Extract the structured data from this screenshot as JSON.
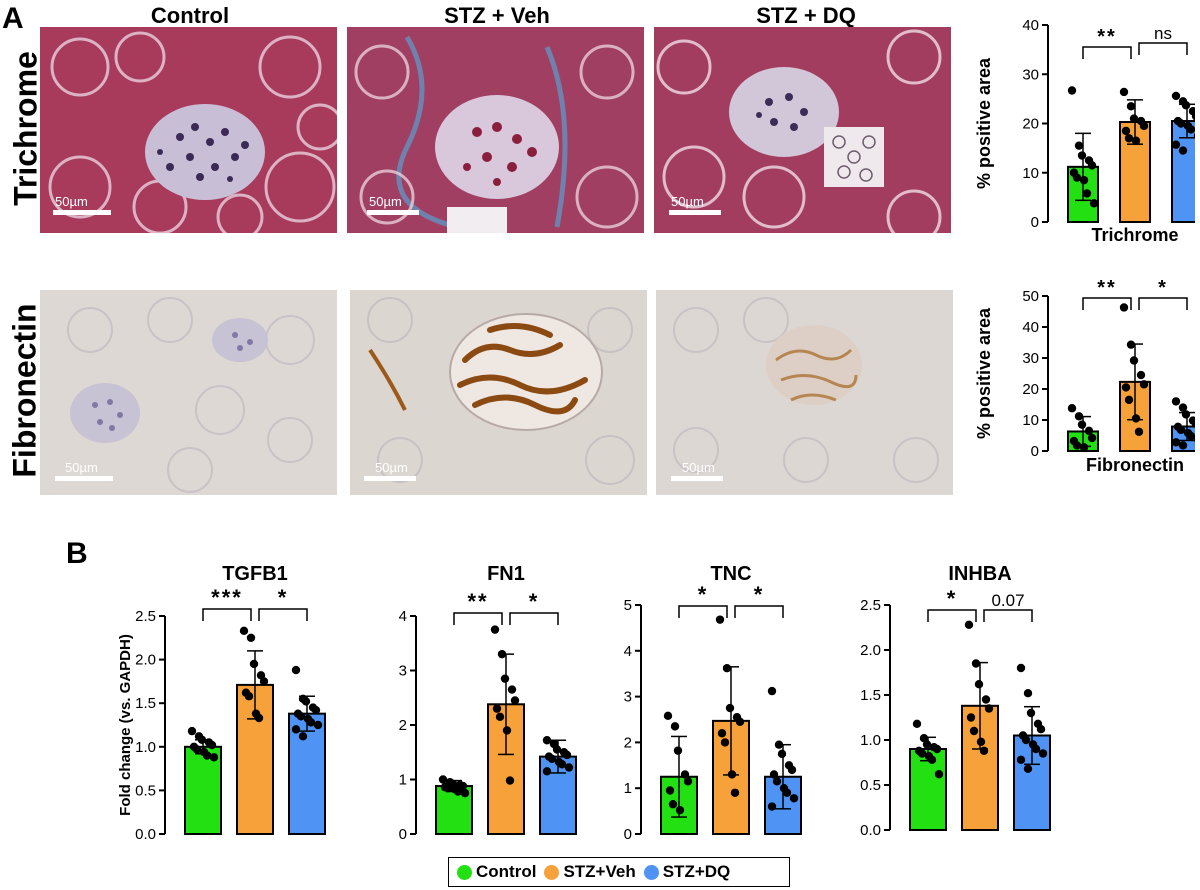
{
  "panel_labels": {
    "a": "A",
    "b": "B"
  },
  "columns": [
    "Control",
    "STZ + Veh",
    "STZ + DQ"
  ],
  "rows": [
    "Trichrome",
    "Fibronectin"
  ],
  "scale_label": "50µm",
  "colors": {
    "control": "#22e012",
    "stz_veh": "#f7a13b",
    "stz_dq": "#4f94f5",
    "trichrome_bg": "#a83a5c",
    "fibronectin_bg": "#ddd8d4"
  },
  "legend": [
    {
      "label": "Control",
      "color": "#22e012"
    },
    {
      "label": "STZ+Veh",
      "color": "#f7a13b"
    },
    {
      "label": "STZ+DQ",
      "color": "#4f94f5"
    }
  ],
  "chart_data": [
    {
      "id": "trichrome",
      "type": "bar",
      "title": "",
      "xlabel": "Trichrome",
      "ylabel": "% positive area",
      "ylim": [
        0,
        40
      ],
      "yticks": [
        0,
        10,
        20,
        30,
        40
      ],
      "categories": [
        "Control",
        "STZ+Veh",
        "STZ+DQ"
      ],
      "values": [
        11.2,
        20.3,
        20.5
      ],
      "errors": [
        6.8,
        4.5,
        3.4
      ],
      "points": [
        [
          26.7,
          15.5,
          13.5,
          12.5,
          11.5,
          10,
          9,
          8.5,
          5.8,
          3.8
        ],
        [
          26.4,
          23.5,
          21,
          20.5,
          19.5,
          18.5,
          17,
          16.5
        ],
        [
          25.6,
          24.5,
          23.7,
          22.5,
          21.5,
          20.5,
          20,
          19.5,
          18.8,
          17.5,
          15.7,
          14.5
        ]
      ],
      "comparisons": [
        {
          "from": 0,
          "to": 1,
          "label": "**"
        },
        {
          "from": 1,
          "to": 2,
          "label": "ns"
        }
      ]
    },
    {
      "id": "fibronectin",
      "type": "bar",
      "title": "",
      "xlabel": "Fibronectin",
      "ylabel": "% positive area",
      "ylim": [
        0,
        50
      ],
      "yticks": [
        0,
        10,
        20,
        30,
        40,
        50
      ],
      "categories": [
        "Control",
        "STZ+Veh",
        "STZ+DQ"
      ],
      "values": [
        6.3,
        22.3,
        7.9
      ],
      "errors": [
        4.8,
        12.2,
        4.5
      ],
      "points": [
        [
          13.8,
          11.2,
          8.5,
          6.5,
          4.2,
          3.2,
          1.8,
          1.2
        ],
        [
          46.3,
          34.3,
          29.2,
          24.5,
          21.5,
          20.5,
          16.5,
          10.5,
          6.2
        ],
        [
          16,
          14,
          11.8,
          9.8,
          8.8,
          7.8,
          6.8,
          5.8,
          4.8,
          3.8,
          2.8,
          1.8
        ]
      ],
      "comparisons": [
        {
          "from": 0,
          "to": 1,
          "label": "**"
        },
        {
          "from": 1,
          "to": 2,
          "label": "*"
        }
      ]
    },
    {
      "id": "tgfb1",
      "type": "bar",
      "title": "TGFB1",
      "xlabel": "",
      "ylabel": "Fold change (vs. GAPDH)",
      "ylim": [
        0,
        2.5
      ],
      "yticks": [
        "0.0",
        "0.5",
        "1.0",
        "1.5",
        "2.0",
        "2.5"
      ],
      "categories": [
        "Control",
        "STZ+Veh",
        "STZ+DQ"
      ],
      "values": [
        1.0,
        1.71,
        1.38
      ],
      "errors": [
        0.08,
        0.39,
        0.2
      ],
      "points": [
        [
          1.18,
          1.12,
          1.08,
          1.05,
          1.02,
          1.0,
          0.97,
          0.94,
          0.9,
          0.88
        ],
        [
          2.33,
          2.25,
          1.95,
          1.82,
          1.75,
          1.62,
          1.58,
          1.38,
          1.33
        ],
        [
          1.88,
          1.55,
          1.52,
          1.45,
          1.42,
          1.38,
          1.35,
          1.32,
          1.28,
          1.25,
          1.2,
          1.12
        ]
      ],
      "comparisons": [
        {
          "from": 0,
          "to": 1,
          "label": "***"
        },
        {
          "from": 1,
          "to": 2,
          "label": "*"
        }
      ]
    },
    {
      "id": "fn1",
      "type": "bar",
      "title": "FN1",
      "xlabel": "",
      "ylabel": "",
      "ylim": [
        0,
        4
      ],
      "yticks": [
        0,
        1,
        2,
        3,
        4
      ],
      "categories": [
        "Control",
        "STZ+Veh",
        "STZ+DQ"
      ],
      "values": [
        0.88,
        2.38,
        1.42
      ],
      "errors": [
        0.1,
        0.92,
        0.3
      ],
      "points": [
        [
          1.0,
          0.95,
          0.92,
          0.9,
          0.88,
          0.86,
          0.84,
          0.82,
          0.78,
          0.75
        ],
        [
          3.75,
          3.3,
          2.85,
          2.65,
          2.45,
          2.3,
          2.15,
          1.9,
          0.98
        ],
        [
          1.72,
          1.65,
          1.55,
          1.5,
          1.45,
          1.42,
          1.38,
          1.32,
          1.28,
          1.22,
          1.15
        ]
      ],
      "comparisons": [
        {
          "from": 0,
          "to": 1,
          "label": "**"
        },
        {
          "from": 1,
          "to": 2,
          "label": "*"
        }
      ]
    },
    {
      "id": "tnc",
      "type": "bar",
      "title": "TNC",
      "xlabel": "",
      "ylabel": "",
      "ylim": [
        0,
        5
      ],
      "yticks": [
        0,
        1,
        2,
        3,
        4,
        5
      ],
      "categories": [
        "Control",
        "STZ+Veh",
        "STZ+DQ"
      ],
      "values": [
        1.25,
        2.47,
        1.25
      ],
      "errors": [
        0.88,
        1.18,
        0.7
      ],
      "points": [
        [
          2.58,
          2.35,
          1.82,
          1.3,
          1.15,
          0.95,
          0.65,
          0.52
        ],
        [
          4.68,
          3.62,
          2.75,
          2.55,
          2.45,
          2.2,
          2.0,
          1.3,
          0.9
        ],
        [
          3.12,
          1.95,
          1.75,
          1.5,
          1.4,
          1.3,
          1.15,
          1.0,
          0.9,
          0.78,
          0.6
        ]
      ],
      "comparisons": [
        {
          "from": 0,
          "to": 1,
          "label": "*"
        },
        {
          "from": 1,
          "to": 2,
          "label": "*"
        }
      ]
    },
    {
      "id": "inhba",
      "type": "bar",
      "title": "INHBA",
      "xlabel": "",
      "ylabel": "",
      "ylim": [
        0,
        2.5
      ],
      "yticks": [
        "0.0",
        "0.5",
        "1.0",
        "1.5",
        "2.0",
        "2.5"
      ],
      "categories": [
        "Control",
        "STZ+Veh",
        "STZ+DQ"
      ],
      "values": [
        0.9,
        1.38,
        1.05
      ],
      "errors": [
        0.13,
        0.48,
        0.32
      ],
      "points": [
        [
          1.18,
          1.02,
          0.95,
          0.92,
          0.9,
          0.88,
          0.85,
          0.82,
          0.78,
          0.62
        ],
        [
          2.28,
          1.85,
          1.62,
          1.45,
          1.35,
          1.25,
          1.1,
          0.98,
          0.88
        ],
        [
          1.8,
          1.52,
          1.3,
          1.18,
          1.12,
          1.05,
          1.0,
          0.95,
          0.9,
          0.85,
          0.78,
          0.68
        ]
      ],
      "comparisons": [
        {
          "from": 0,
          "to": 1,
          "label": "*"
        },
        {
          "from": 1,
          "to": 2,
          "label": "0.07"
        }
      ]
    }
  ]
}
